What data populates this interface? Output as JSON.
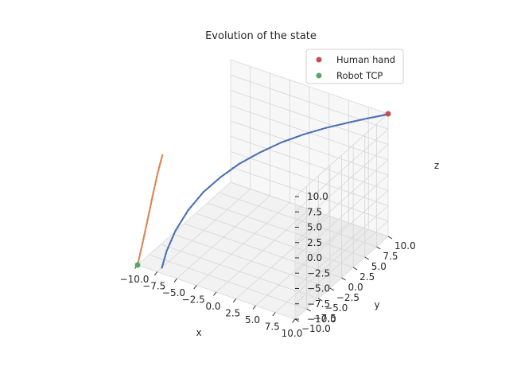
{
  "chart_data": {
    "type": "line",
    "projection": "3d",
    "title": "Evolution of the state",
    "xlabel": "x",
    "ylabel": "y",
    "zlabel": "z",
    "xlim": [
      -10,
      10
    ],
    "ylim": [
      -10,
      10
    ],
    "zlim": [
      -10,
      10
    ],
    "xticks": [
      "−10.0",
      "−7.5",
      "−5.0",
      "−2.5",
      "0.0",
      "2.5",
      "5.0",
      "7.5",
      "10.0"
    ],
    "yticks": [
      "−10.0",
      "−7.5",
      "−5.0",
      "−2.5",
      "0.0",
      "2.5",
      "5.0",
      "7.5",
      "10.0"
    ],
    "zticks": [
      "−10.0",
      "−7.5",
      "−5.0",
      "−2.5",
      "0.0",
      "2.5",
      "5.0",
      "7.5",
      "10.0"
    ],
    "grid": true,
    "legend_position": "top-right",
    "legend": [
      {
        "label": "Human hand",
        "color": "#c44e52"
      },
      {
        "label": "Robot TCP",
        "color": "#55a868"
      }
    ],
    "series": [
      {
        "color": "#4c72b0",
        "x": [
          -7.5,
          -7.2,
          -6.6,
          -5.7,
          -4.6,
          -3.3,
          -1.9,
          -0.3,
          1.4,
          3.2,
          5.0,
          6.8,
          8.4,
          9.6,
          10.0
        ],
        "y": [
          -9.0,
          -8.5,
          -7.6,
          -6.4,
          -5.0,
          -3.5,
          -1.9,
          -0.2,
          1.6,
          3.4,
          5.1,
          6.8,
          8.3,
          9.5,
          10.0
        ],
        "z": [
          -10.0,
          -7.5,
          -4.5,
          -1.6,
          0.9,
          2.9,
          4.6,
          6.0,
          7.2,
          8.1,
          8.8,
          9.3,
          9.7,
          9.9,
          10.0
        ]
      },
      {
        "color": "#dd8452",
        "x": [
          -10.0,
          -9.6,
          -9.2,
          -8.8,
          -8.4,
          -8.0
        ],
        "y": [
          -10.0,
          -9.6,
          -9.2,
          -8.8,
          -8.4,
          -8.0
        ],
        "z": [
          -10.0,
          -6.5,
          -2.8,
          1.0,
          4.6,
          7.6
        ]
      }
    ],
    "points": [
      {
        "label": "Human hand",
        "x": 10.0,
        "y": 10.0,
        "z": 10.0,
        "color": "#c44e52"
      },
      {
        "label": "Robot TCP",
        "x": -10.0,
        "y": -10.0,
        "z": -10.0,
        "color": "#55a868"
      }
    ]
  }
}
